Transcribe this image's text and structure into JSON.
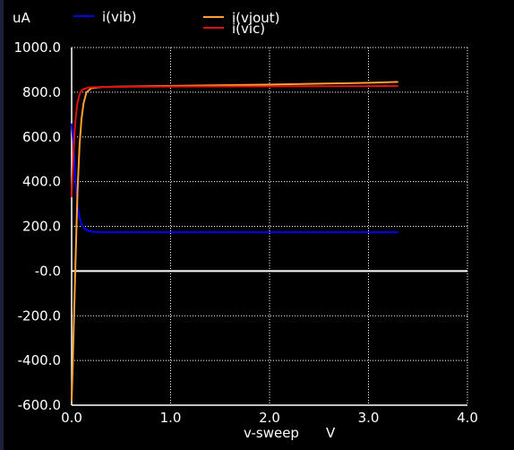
{
  "chart_data": {
    "type": "line",
    "unit_y": "uA",
    "xlabel": "v-sweep",
    "xunit": "V",
    "xlim": [
      0.0,
      4.0
    ],
    "ylim": [
      -600.0,
      1000.0
    ],
    "x_ticks": [
      "0.0",
      "1.0",
      "2.0",
      "3.0",
      "4.0"
    ],
    "x_tick_values": [
      0.0,
      1.0,
      2.0,
      3.0,
      4.0
    ],
    "y_ticks": [
      "1000.0",
      "800.0",
      "600.0",
      "400.0",
      "200.0",
      "-0.0",
      "-200.0",
      "-400.0",
      "-600.0"
    ],
    "y_tick_values": [
      1000,
      800,
      600,
      400,
      200,
      0,
      -200,
      -400,
      -600
    ],
    "grid": true,
    "legend_position": "top",
    "series": [
      {
        "name": "i(vib)",
        "color": "#0000ff",
        "x": [
          0.0,
          0.02,
          0.04,
          0.06,
          0.08,
          0.1,
          0.13,
          0.17,
          0.2,
          0.3,
          0.5,
          1.0,
          2.0,
          3.0,
          3.3
        ],
        "y": [
          660,
          560,
          400,
          290,
          240,
          210,
          190,
          180,
          176,
          174,
          174,
          174,
          174,
          174,
          174
        ]
      },
      {
        "name": "i(vjout)",
        "color": "#ffa030",
        "x": [
          0.0,
          0.01,
          0.02,
          0.03,
          0.04,
          0.05,
          0.06,
          0.08,
          0.1,
          0.12,
          0.15,
          0.2,
          0.3,
          0.5,
          1.0,
          2.0,
          3.0,
          3.3
        ],
        "y": [
          -580,
          -440,
          -270,
          -110,
          50,
          210,
          360,
          560,
          680,
          750,
          800,
          818,
          823,
          825,
          828,
          834,
          842,
          846
        ]
      },
      {
        "name": "i(vic)",
        "color": "#e01010",
        "x": [
          0.0,
          0.01,
          0.02,
          0.03,
          0.04,
          0.05,
          0.06,
          0.08,
          0.1,
          0.13,
          0.17,
          0.2,
          0.3,
          0.5,
          1.0,
          2.0,
          3.0,
          3.3
        ],
        "y": [
          330,
          440,
          540,
          620,
          680,
          720,
          755,
          790,
          808,
          816,
          820,
          822,
          823,
          824,
          825,
          826,
          827,
          828
        ]
      }
    ]
  }
}
